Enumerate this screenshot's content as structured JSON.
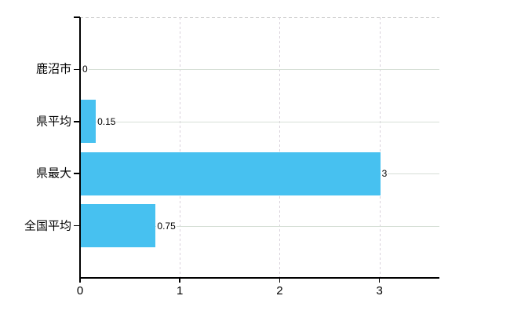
{
  "chart_data": {
    "type": "bar",
    "orientation": "horizontal",
    "title": "",
    "xlabel": "",
    "ylabel": "",
    "categories": [
      "鹿沼市",
      "県平均",
      "県最大",
      "全国平均"
    ],
    "values": [
      0,
      0.15,
      3,
      0.75
    ],
    "value_labels": [
      "0",
      "0.15",
      "3",
      "0.75"
    ],
    "x_ticks": [
      0,
      1,
      2,
      3
    ],
    "x_tick_labels": [
      "0",
      "1",
      "2",
      "3"
    ],
    "xlim": [
      0,
      3.6
    ],
    "legend": null,
    "grid": {
      "horizontal": "solid",
      "vertical": "dashed",
      "top_border": "dashed"
    }
  },
  "colors": {
    "bar": "#47c1f0",
    "axis": "#000000",
    "horizontal_gridline": "#d6dfd6",
    "vertical_gridline": "#d9d1db",
    "top_border": "#c9c9c9",
    "text": "#000000",
    "background": "#ffffff"
  }
}
